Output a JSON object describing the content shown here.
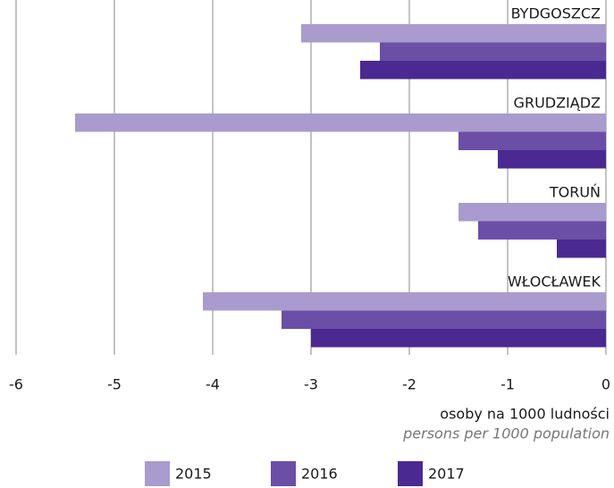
{
  "chart_data": {
    "type": "bar",
    "orientation": "horizontal",
    "categories": [
      "BYDGOSZCZ",
      "GRUDZIĄDZ",
      "TORUŃ",
      "WŁOCŁAWEK"
    ],
    "series": [
      {
        "name": "2015",
        "color": "#a99bce",
        "values": [
          -3.1,
          -5.4,
          -1.5,
          -4.1
        ]
      },
      {
        "name": "2016",
        "color": "#6b4fa7",
        "values": [
          -2.3,
          -1.5,
          -1.3,
          -3.3
        ]
      },
      {
        "name": "2017",
        "color": "#4a2a91",
        "values": [
          -2.5,
          -1.1,
          -0.5,
          -3.0
        ]
      }
    ],
    "xlim": [
      -6,
      0
    ],
    "xticks": [
      -6,
      -5,
      -4,
      -3,
      -2,
      -1,
      0
    ],
    "grid": true,
    "x_label": "osoby na 1000 ludności",
    "x_label_en": "persons per 1000 population",
    "legend": "bottom"
  }
}
